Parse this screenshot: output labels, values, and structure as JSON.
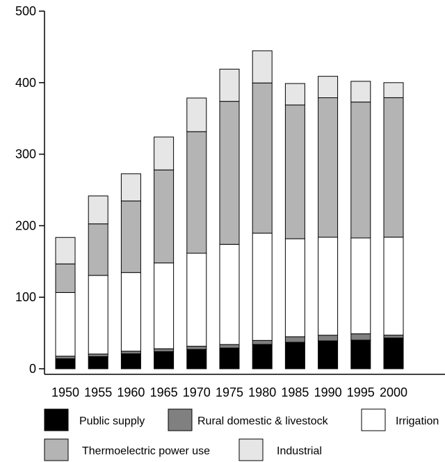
{
  "chart_data": {
    "type": "bar",
    "stacked": true,
    "title": "",
    "xlabel": "",
    "ylabel": "",
    "ylim": [
      0,
      500
    ],
    "yticks": [
      "0",
      "100",
      "200",
      "300",
      "400",
      "500"
    ],
    "grid": false,
    "legend_position": "bottom",
    "categories": [
      "1950",
      "1955",
      "1960",
      "1965",
      "1970",
      "1975",
      "1980",
      "1985",
      "1990",
      "1995",
      "2000"
    ],
    "series": [
      {
        "name": "Public supply",
        "color": "#000000",
        "values": [
          14,
          17,
          21,
          24,
          27,
          29,
          34,
          37,
          39,
          40,
          43
        ]
      },
      {
        "name": "Rural domestic & livestock",
        "color": "#808080",
        "values": [
          3.6,
          3.6,
          3.6,
          4.0,
          4.5,
          4.9,
          5.6,
          7.8,
          7.9,
          8.9,
          4.0
        ]
      },
      {
        "name": "Irrigation",
        "color": "#ffffff",
        "values": [
          89,
          110,
          110,
          120,
          130,
          140,
          150,
          137,
          137,
          134,
          137
        ]
      },
      {
        "name": "Thermoelectric power use",
        "color": "#b4b4b4",
        "values": [
          40,
          72,
          100,
          130,
          170,
          200,
          210,
          187,
          195,
          190,
          195
        ]
      },
      {
        "name": "Industrial",
        "color": "#e6e6e6",
        "values": [
          37,
          39,
          38,
          46,
          47,
          45,
          45,
          30,
          30,
          29,
          21
        ]
      }
    ]
  }
}
